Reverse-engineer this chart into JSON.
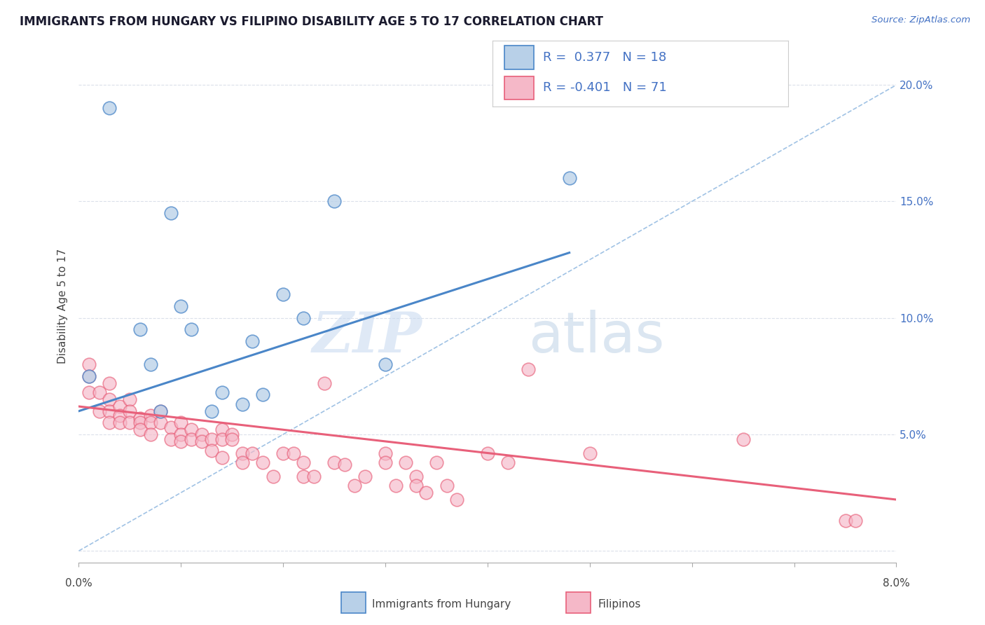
{
  "title": "IMMIGRANTS FROM HUNGARY VS FILIPINO DISABILITY AGE 5 TO 17 CORRELATION CHART",
  "source_text": "Source: ZipAtlas.com",
  "ylabel": "Disability Age 5 to 17",
  "xlim": [
    0.0,
    0.08
  ],
  "ylim": [
    -0.005,
    0.215
  ],
  "legend_hungary_R": "0.377",
  "legend_hungary_N": "18",
  "legend_filipino_R": "-0.401",
  "legend_filipino_N": "71",
  "hungary_color": "#b8d0e8",
  "filipino_color": "#f5b8c8",
  "hungary_line_color": "#4a86c8",
  "filipino_line_color": "#e8607a",
  "watermark_zip": "ZIP",
  "watermark_atlas": "atlas",
  "hungary_scatter_x": [
    0.001,
    0.003,
    0.006,
    0.007,
    0.008,
    0.009,
    0.01,
    0.011,
    0.013,
    0.014,
    0.016,
    0.017,
    0.018,
    0.02,
    0.022,
    0.025,
    0.03,
    0.048
  ],
  "hungary_scatter_y": [
    0.075,
    0.19,
    0.095,
    0.08,
    0.06,
    0.145,
    0.105,
    0.095,
    0.06,
    0.068,
    0.063,
    0.09,
    0.067,
    0.11,
    0.1,
    0.15,
    0.08,
    0.16
  ],
  "filipino_scatter_x": [
    0.001,
    0.001,
    0.001,
    0.002,
    0.002,
    0.003,
    0.003,
    0.003,
    0.003,
    0.004,
    0.004,
    0.004,
    0.005,
    0.005,
    0.005,
    0.006,
    0.006,
    0.006,
    0.007,
    0.007,
    0.007,
    0.008,
    0.008,
    0.009,
    0.009,
    0.01,
    0.01,
    0.01,
    0.011,
    0.011,
    0.012,
    0.012,
    0.013,
    0.013,
    0.014,
    0.014,
    0.014,
    0.015,
    0.015,
    0.016,
    0.016,
    0.017,
    0.018,
    0.019,
    0.02,
    0.021,
    0.022,
    0.022,
    0.023,
    0.024,
    0.025,
    0.026,
    0.027,
    0.028,
    0.03,
    0.03,
    0.031,
    0.032,
    0.033,
    0.033,
    0.034,
    0.035,
    0.036,
    0.037,
    0.04,
    0.042,
    0.044,
    0.05,
    0.065,
    0.075,
    0.076
  ],
  "filipino_scatter_y": [
    0.08,
    0.075,
    0.068,
    0.068,
    0.06,
    0.072,
    0.065,
    0.06,
    0.055,
    0.062,
    0.058,
    0.055,
    0.065,
    0.06,
    0.055,
    0.057,
    0.055,
    0.052,
    0.058,
    0.055,
    0.05,
    0.06,
    0.055,
    0.053,
    0.048,
    0.055,
    0.05,
    0.047,
    0.052,
    0.048,
    0.05,
    0.047,
    0.048,
    0.043,
    0.052,
    0.048,
    0.04,
    0.05,
    0.048,
    0.042,
    0.038,
    0.042,
    0.038,
    0.032,
    0.042,
    0.042,
    0.038,
    0.032,
    0.032,
    0.072,
    0.038,
    0.037,
    0.028,
    0.032,
    0.042,
    0.038,
    0.028,
    0.038,
    0.032,
    0.028,
    0.025,
    0.038,
    0.028,
    0.022,
    0.042,
    0.038,
    0.078,
    0.042,
    0.048,
    0.013,
    0.013
  ],
  "hungary_line_x0": 0.0,
  "hungary_line_y0": 0.06,
  "hungary_line_x1": 0.048,
  "hungary_line_y1": 0.128,
  "filipino_line_x0": 0.0,
  "filipino_line_y0": 0.062,
  "filipino_line_x1": 0.08,
  "filipino_line_y1": 0.022,
  "dash_line_color": "#90b8e0",
  "grid_color": "#d8dde8",
  "y_ticks": [
    0.0,
    0.05,
    0.1,
    0.15,
    0.2
  ],
  "y_tick_labels": [
    "",
    "5.0%",
    "10.0%",
    "15.0%",
    "20.0%"
  ]
}
